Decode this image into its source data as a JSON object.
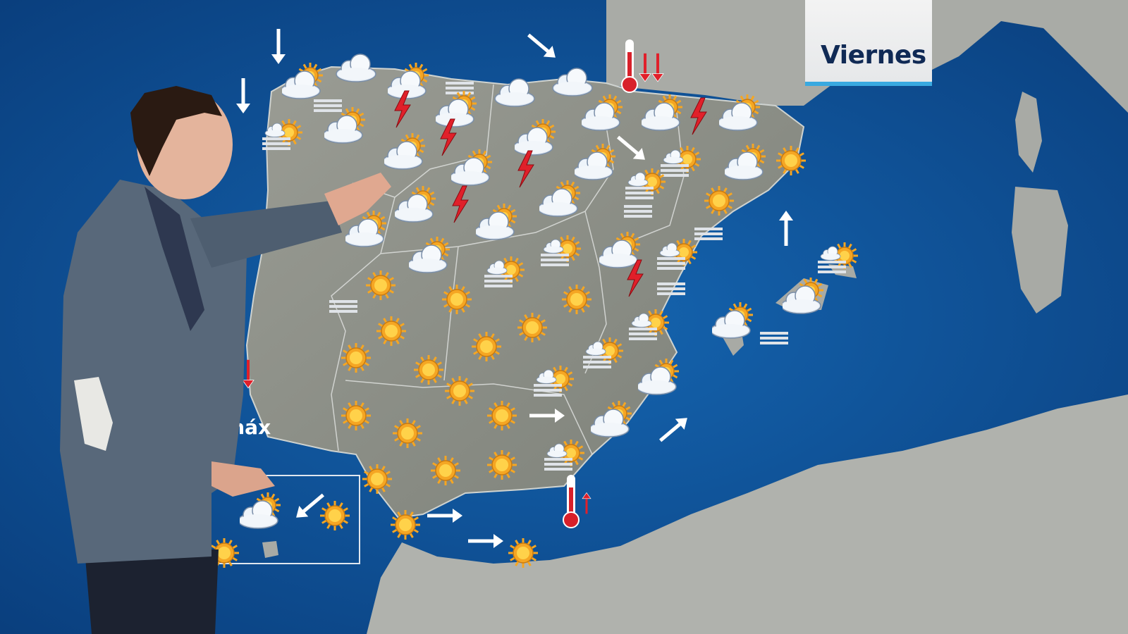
{
  "title": {
    "day": "Viernes"
  },
  "legend_fragment": "máx",
  "colors": {
    "sea": "#0e4f94",
    "land": "#8a8d86",
    "sun": "#f5a623",
    "lightning": "#e0202a",
    "thermometer": "#d8202a",
    "title_text": "#102a55"
  },
  "icons": [
    "arrow-down",
    "arrow-down",
    "arrow-down-right",
    "cloud-sun",
    "cloud",
    "cloud-sun",
    "cloud",
    "cloud",
    "fog",
    "fog",
    "fog-sun",
    "cloud-sun",
    "lightning",
    "cloud-sun",
    "lightning",
    "cloud-sun",
    "cloud-sun",
    "lightning",
    "cloud-sun",
    "cloud-sun",
    "cloud-sun",
    "cloud-sun",
    "lightning",
    "cloud-sun",
    "fog-sun",
    "cloud-sun",
    "sun",
    "arrow-down-right",
    "fog-sun",
    "lightning",
    "cloud-sun",
    "cloud-sun",
    "sun",
    "fog",
    "fog",
    "cloud-sun",
    "cloud-sun",
    "fog-sun",
    "cloud-sun",
    "fog-sun",
    "arrow-up",
    "cloud-sun",
    "fog-sun",
    "lightning",
    "fog-sun",
    "cloud-sun",
    "sun",
    "fog",
    "sun",
    "sun",
    "fog",
    "fog-sun",
    "cloud-sun",
    "fog",
    "sun",
    "sun",
    "sun",
    "sun",
    "sun",
    "fog-sun",
    "sun",
    "fog-sun",
    "cloud-sun",
    "sun",
    "sun",
    "sun",
    "arrow-right",
    "cloud-sun",
    "arrow-up-right",
    "fog-sun",
    "sun",
    "sun",
    "sun",
    "sun",
    "arrow-right",
    "arrow-right",
    "sun",
    "arrow-down-left",
    "cloud-sun",
    "sun",
    "sun",
    "arrow-down-red",
    "arrow-up-red",
    "arrow-down-red",
    "arrow-down-red"
  ]
}
